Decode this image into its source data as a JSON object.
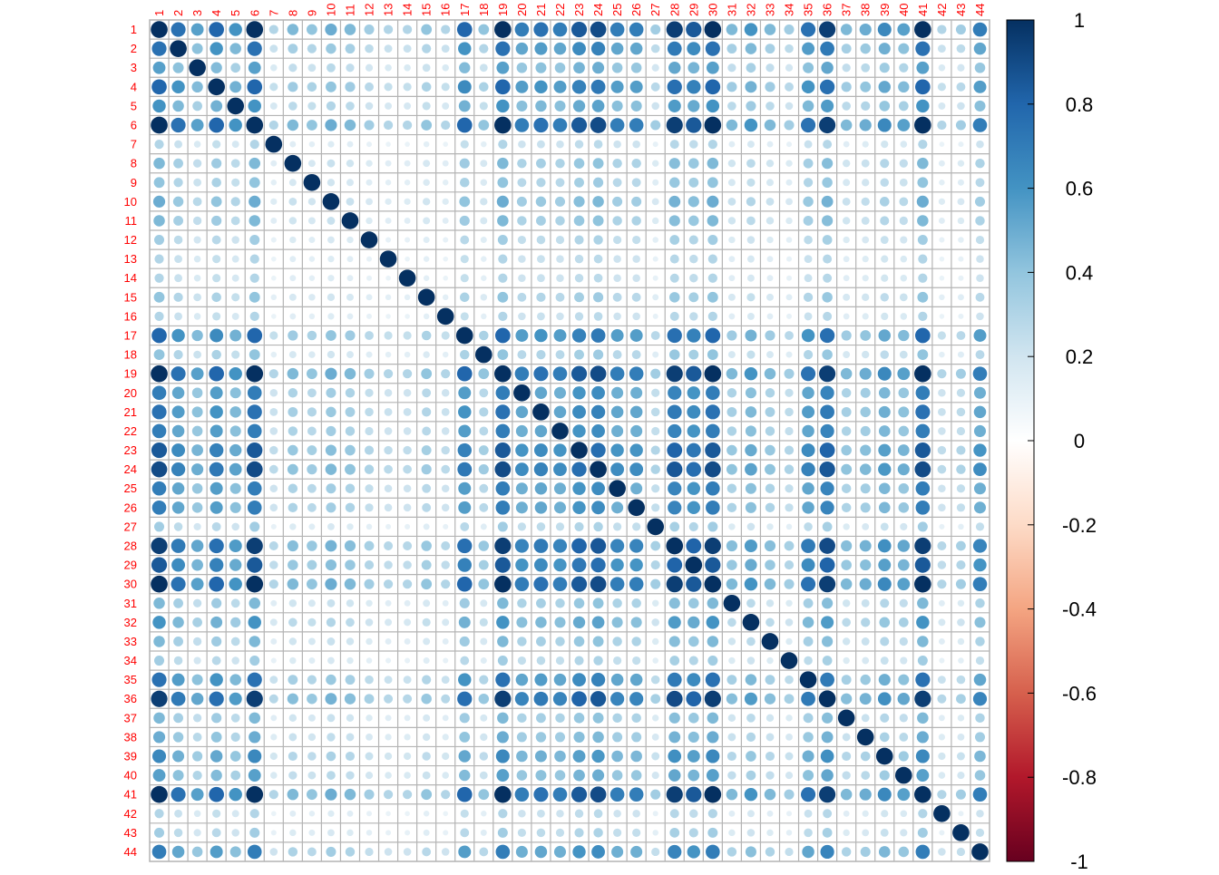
{
  "chart_data": {
    "type": "heatmap",
    "subtype": "correlation-circle-plot",
    "variables": [
      "1",
      "2",
      "3",
      "4",
      "5",
      "6",
      "7",
      "8",
      "9",
      "10",
      "11",
      "12",
      "13",
      "14",
      "15",
      "16",
      "17",
      "18",
      "19",
      "20",
      "21",
      "22",
      "23",
      "24",
      "25",
      "26",
      "27",
      "28",
      "29",
      "30",
      "31",
      "32",
      "33",
      "34",
      "35",
      "36",
      "37",
      "38",
      "39",
      "40",
      "41",
      "42",
      "43",
      "44"
    ],
    "strength": [
      1.0,
      0.75,
      0.55,
      0.8,
      0.6,
      1.0,
      0.3,
      0.45,
      0.4,
      0.5,
      0.45,
      0.35,
      0.3,
      0.3,
      0.4,
      0.3,
      0.8,
      0.4,
      1.0,
      0.7,
      0.75,
      0.7,
      0.85,
      0.9,
      0.7,
      0.7,
      0.35,
      0.95,
      0.85,
      1.0,
      0.45,
      0.6,
      0.45,
      0.35,
      0.75,
      0.95,
      0.45,
      0.5,
      0.65,
      0.55,
      1.0,
      0.3,
      0.35,
      0.7
    ],
    "values_formula": "r(i,j) = strength_i * strength_j, r(i,i) = 1",
    "xlim_color": [
      -1,
      1
    ],
    "tick_labels_color": [
      "1",
      "0.8",
      "0.6",
      "0.4",
      "0.2",
      "0",
      "-0.2",
      "-0.4",
      "-0.6",
      "-0.8",
      "-1"
    ],
    "colorscale": [
      "#67001F",
      "#B2182B",
      "#D6604D",
      "#F4A582",
      "#FDDBC7",
      "#FFFFFF",
      "#D1E5F0",
      "#92C5DE",
      "#4393C3",
      "#2166AC",
      "#053061"
    ],
    "label_color": "#FF0000",
    "grid": true,
    "legend_placement": "right"
  }
}
